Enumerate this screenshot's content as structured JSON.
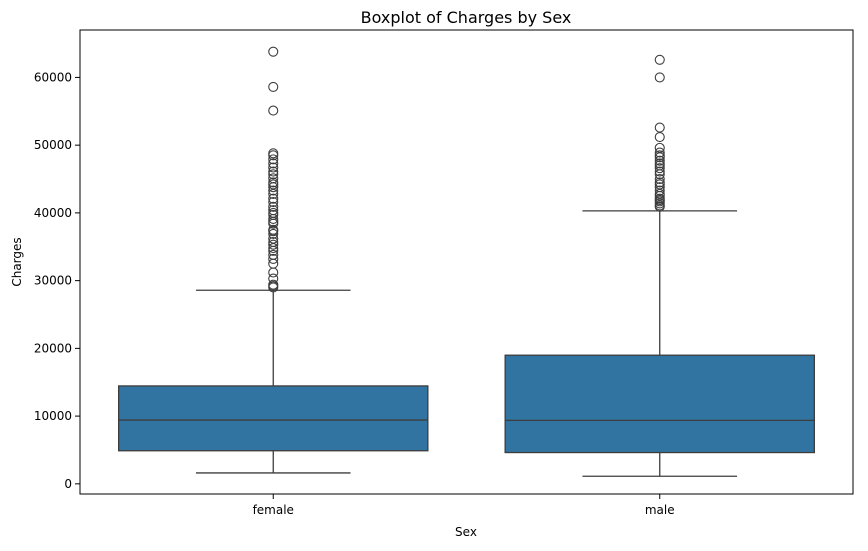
{
  "chart_data": {
    "type": "boxplot",
    "title": "Boxplot of Charges by Sex",
    "xlabel": "Sex",
    "ylabel": "Charges",
    "ylim": [
      -1500,
      67000
    ],
    "y_ticks": [
      0,
      10000,
      20000,
      30000,
      40000,
      50000,
      60000
    ],
    "y_tick_labels": [
      "0",
      "10000",
      "20000",
      "30000",
      "40000",
      "50000",
      "60000"
    ],
    "grid": false,
    "box_color": "#3274a1",
    "line_color": "#3d3d3d",
    "categories": [
      "female",
      "male"
    ],
    "boxes": [
      {
        "category": "female",
        "whisker_low": 1608,
        "q1": 4885,
        "median": 9413,
        "q3": 14454,
        "whisker_high": 28575,
        "outliers": [
          29000,
          29200,
          29400,
          30300,
          31200,
          32500,
          33200,
          33800,
          34400,
          34800,
          35300,
          35700,
          36200,
          36900,
          37300,
          37500,
          38400,
          38700,
          39100,
          39700,
          40000,
          40400,
          40900,
          41600,
          42100,
          42800,
          43300,
          43800,
          44200,
          44500,
          45100,
          45700,
          46100,
          46700,
          47300,
          47900,
          48500,
          48800,
          55100,
          58600,
          63800
        ]
      },
      {
        "category": "male",
        "whisker_low": 1122,
        "q1": 4620,
        "median": 9370,
        "q3": 18990,
        "whisker_high": 40300,
        "outliers": [
          40900,
          41100,
          41400,
          41700,
          41900,
          42100,
          42500,
          42800,
          43300,
          43800,
          44200,
          44500,
          45000,
          45700,
          46100,
          46600,
          47000,
          47300,
          47700,
          48200,
          48500,
          48900,
          49600,
          51200,
          52600,
          60000,
          62600
        ]
      }
    ]
  }
}
